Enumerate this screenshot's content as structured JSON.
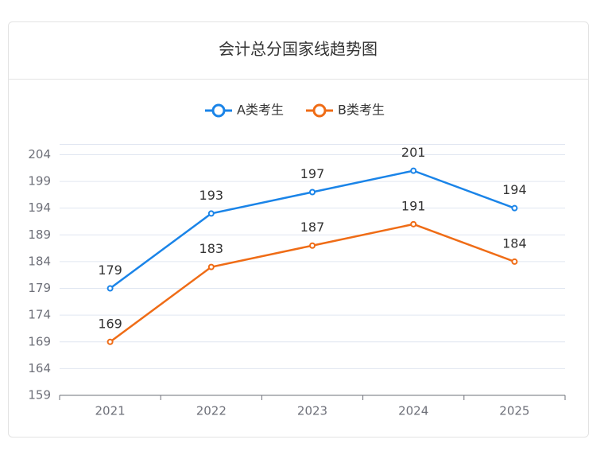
{
  "chart_data": {
    "type": "line",
    "title": "会计总分国家线趋势图",
    "categories": [
      "2021",
      "2022",
      "2023",
      "2024",
      "2025"
    ],
    "series": [
      {
        "name": "A类考生",
        "color": "#1a84e8",
        "values": [
          179,
          193,
          197,
          201,
          194
        ]
      },
      {
        "name": "B类考生",
        "color": "#ef6c16",
        "values": [
          169,
          183,
          187,
          191,
          184
        ]
      }
    ],
    "ylim": [
      159,
      206
    ],
    "yticks": [
      159,
      164,
      169,
      174,
      179,
      184,
      189,
      194,
      199,
      204
    ],
    "grid": true,
    "legend": "top"
  }
}
